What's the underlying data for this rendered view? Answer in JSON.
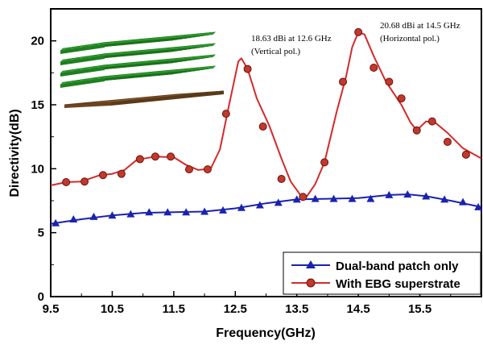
{
  "chart_data": {
    "type": "line",
    "xlabel": "Frequency(GHz)",
    "ylabel": "Directivity(dB)",
    "xlim": [
      9.5,
      16.5
    ],
    "ylim": [
      0,
      22.5
    ],
    "xticks": [
      "9.5",
      "10.5",
      "11.5",
      "12.5",
      "13.5",
      "14.5",
      "15.5"
    ],
    "yticks": [
      "0",
      "5",
      "10",
      "15",
      "20"
    ],
    "grid": false,
    "legend_position": "bottom-right",
    "series": [
      {
        "name": "Dual-band patch only",
        "color": "#1a22b0",
        "marker": "triangle",
        "curve": [
          [
            9.5,
            5.7
          ],
          [
            10,
            6.05
          ],
          [
            10.5,
            6.35
          ],
          [
            11,
            6.55
          ],
          [
            11.5,
            6.6
          ],
          [
            12,
            6.65
          ],
          [
            12.5,
            6.9
          ],
          [
            13,
            7.3
          ],
          [
            13.5,
            7.6
          ],
          [
            14,
            7.65
          ],
          [
            14.5,
            7.7
          ],
          [
            15,
            7.95
          ],
          [
            15.3,
            8.0
          ],
          [
            15.6,
            7.85
          ],
          [
            16,
            7.5
          ],
          [
            16.5,
            7.0
          ]
        ],
        "markers": [
          [
            9.58,
            5.75
          ],
          [
            9.87,
            6.05
          ],
          [
            10.2,
            6.25
          ],
          [
            10.5,
            6.35
          ],
          [
            10.8,
            6.45
          ],
          [
            11.1,
            6.6
          ],
          [
            11.4,
            6.6
          ],
          [
            11.7,
            6.6
          ],
          [
            12.0,
            6.65
          ],
          [
            12.3,
            6.75
          ],
          [
            12.6,
            6.95
          ],
          [
            12.9,
            7.15
          ],
          [
            13.2,
            7.35
          ],
          [
            13.5,
            7.6
          ],
          [
            13.8,
            7.65
          ],
          [
            14.1,
            7.65
          ],
          [
            14.4,
            7.65
          ],
          [
            14.7,
            7.65
          ],
          [
            15.0,
            7.95
          ],
          [
            15.3,
            8.0
          ],
          [
            15.6,
            7.85
          ],
          [
            15.9,
            7.6
          ],
          [
            16.2,
            7.4
          ],
          [
            16.45,
            7.0
          ]
        ]
      },
      {
        "name": "With EBG superstrate",
        "color": "#d42a2a",
        "marker": "circle",
        "curve": [
          [
            9.5,
            8.7
          ],
          [
            9.75,
            8.95
          ],
          [
            10.0,
            9.0
          ],
          [
            10.3,
            9.5
          ],
          [
            10.5,
            9.6
          ],
          [
            10.7,
            9.9
          ],
          [
            10.9,
            10.7
          ],
          [
            11.2,
            10.95
          ],
          [
            11.5,
            10.9
          ],
          [
            11.7,
            10.3
          ],
          [
            11.9,
            9.9
          ],
          [
            12.1,
            10.0
          ],
          [
            12.25,
            11.5
          ],
          [
            12.4,
            15.0
          ],
          [
            12.55,
            18.4
          ],
          [
            12.6,
            18.63
          ],
          [
            12.7,
            17.8
          ],
          [
            12.85,
            15.5
          ],
          [
            13.05,
            13.4
          ],
          [
            13.25,
            10.8
          ],
          [
            13.4,
            9.0
          ],
          [
            13.55,
            8.0
          ],
          [
            13.65,
            7.75
          ],
          [
            13.8,
            8.8
          ],
          [
            13.95,
            10.5
          ],
          [
            14.15,
            14.5
          ],
          [
            14.3,
            17.2
          ],
          [
            14.4,
            19.5
          ],
          [
            14.5,
            20.68
          ],
          [
            14.6,
            20.5
          ],
          [
            14.75,
            18.8
          ],
          [
            14.95,
            16.8
          ],
          [
            15.2,
            15.0
          ],
          [
            15.35,
            13.6
          ],
          [
            15.45,
            13.0
          ],
          [
            15.6,
            13.7
          ],
          [
            15.75,
            13.6
          ],
          [
            15.95,
            12.8
          ],
          [
            16.2,
            11.6
          ],
          [
            16.5,
            10.8
          ]
        ],
        "markers": [
          [
            9.75,
            8.95
          ],
          [
            10.05,
            9.0
          ],
          [
            10.35,
            9.5
          ],
          [
            10.65,
            9.6
          ],
          [
            10.95,
            10.75
          ],
          [
            11.2,
            10.95
          ],
          [
            11.45,
            10.95
          ],
          [
            11.75,
            9.95
          ],
          [
            12.05,
            9.95
          ],
          [
            12.35,
            14.3
          ],
          [
            12.7,
            17.8
          ],
          [
            12.95,
            13.3
          ],
          [
            13.25,
            9.2
          ],
          [
            13.6,
            7.8
          ],
          [
            13.95,
            10.5
          ],
          [
            14.25,
            16.8
          ],
          [
            14.5,
            20.68
          ],
          [
            14.75,
            17.9
          ],
          [
            15.0,
            16.8
          ],
          [
            15.2,
            15.5
          ],
          [
            15.45,
            13.0
          ],
          [
            15.7,
            13.7
          ],
          [
            15.95,
            12.1
          ],
          [
            16.25,
            11.1
          ]
        ]
      }
    ],
    "annotations": [
      {
        "lines": [
          "18.63 dBi at 12.6 GHz",
          "(Vertical pol.)"
        ],
        "x": 12.6,
        "y": 18.63
      },
      {
        "lines": [
          "20.68 dBi at 14.5 GHz",
          "(Horizontal pol.)"
        ],
        "x": 14.5,
        "y": 20.68
      }
    ]
  },
  "inset": {
    "name": "EBG superstrate 3D model",
    "layer_color": "#2ea62e",
    "substrate_color": "#8b5a2b"
  }
}
